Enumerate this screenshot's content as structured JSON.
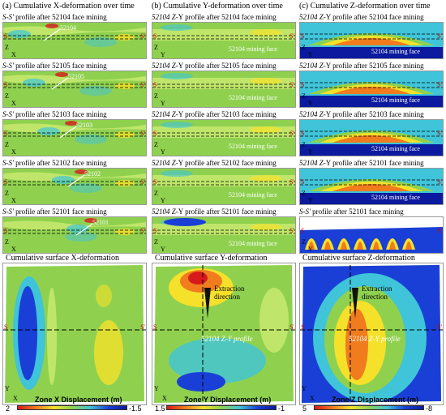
{
  "columns": [
    {
      "title": "(a) Cumulative X-deformation  over time",
      "profiles": [
        {
          "prefix": "S-S'",
          "rest": " profile after 52104 face mining",
          "arrow_label": "52104"
        },
        {
          "prefix": "S-S'",
          "rest": " profile after 52105 face mining",
          "arrow_label": "52105"
        },
        {
          "prefix": "S-S'",
          "rest": " profile after 52103 face mining",
          "arrow_label": "52103"
        },
        {
          "prefix": "S-S'",
          "rest": " profile after 52102 face mining",
          "arrow_label": "52102"
        },
        {
          "prefix": "S-S'",
          "rest": " profile after 52101 face mining",
          "arrow_label": "52101"
        }
      ],
      "surface_title": "Cumulative surface X-deformation",
      "colorbar": {
        "title": "Zone X Displacement (m)",
        "min": "2",
        "max": "-1.5"
      }
    },
    {
      "title": "(b) Cumulative Y-deformation  over time",
      "profiles": [
        {
          "prefix": "52104",
          "mid": " Z",
          "rest": "-Y profile after 52104 face mining",
          "face_label": "52104 mining face"
        },
        {
          "prefix": "52104",
          "mid": " Z",
          "rest": "-Y profile after 52105 face mining",
          "face_label": "52104 mining face"
        },
        {
          "prefix": "52104",
          "mid": " Z",
          "rest": "-Y profile after 52103 face mining",
          "face_label": "52104 mining face"
        },
        {
          "prefix": "52104",
          "mid": " Z",
          "rest": "-Y profile after 52102 face mining",
          "face_label": "52104 mining face"
        },
        {
          "prefix": "52104",
          "mid": " Z",
          "rest": "-Y profile after 52101 face mining",
          "face_label": "52104 mining face"
        }
      ],
      "surface_title": "Cumulative surface Y-deformation",
      "extraction": "Extraction direction",
      "profile_label": "52104 Z-Y profile",
      "colorbar": {
        "title": "Zone Y Displacement (m)",
        "min": "1.5",
        "max": "-1"
      }
    },
    {
      "title": "(c) Cumulative Z-deformation  over time",
      "profiles": [
        {
          "prefix": "52104",
          "mid": " Z",
          "rest": "-Y profile after 52104 face mining",
          "face_label": "52104 mining face"
        },
        {
          "prefix": "52104",
          "mid": " Z",
          "rest": "-Y profile after 52105 face mining",
          "face_label": "52104 mining face"
        },
        {
          "prefix": "52104",
          "mid": " Z",
          "rest": "-Y profile after 52103 face mining",
          "face_label": "52104 mining face"
        },
        {
          "prefix": "52104",
          "mid": " Z",
          "rest": "-Y profile after 52101 face mining",
          "face_label": "52104 mining face"
        },
        {
          "prefix": "S-S'",
          "mid": "",
          "rest": " profile after 52101 face mining",
          "face_label": ""
        }
      ],
      "surface_title": "Cumulative surface Z-deformation",
      "extraction": "Extraction direction",
      "profile_label": "52104 Z-Y profile",
      "colorbar": {
        "title": "Zone Z Displacement (m)",
        "min": "5",
        "max": "-8"
      }
    }
  ],
  "axis_labels": {
    "x": "X",
    "y": "Y",
    "z": "Z",
    "s": "S",
    "s_prime": "S'"
  },
  "colors": {
    "red": "#d7191c",
    "orange": "#f07c1e",
    "yellow": "#f5e12a",
    "green": "#8fd14f",
    "lightgreen": "#bfe66a",
    "cyan": "#3fc4d9",
    "blue": "#1a3fd6",
    "darkblue": "#0b1a9e"
  }
}
